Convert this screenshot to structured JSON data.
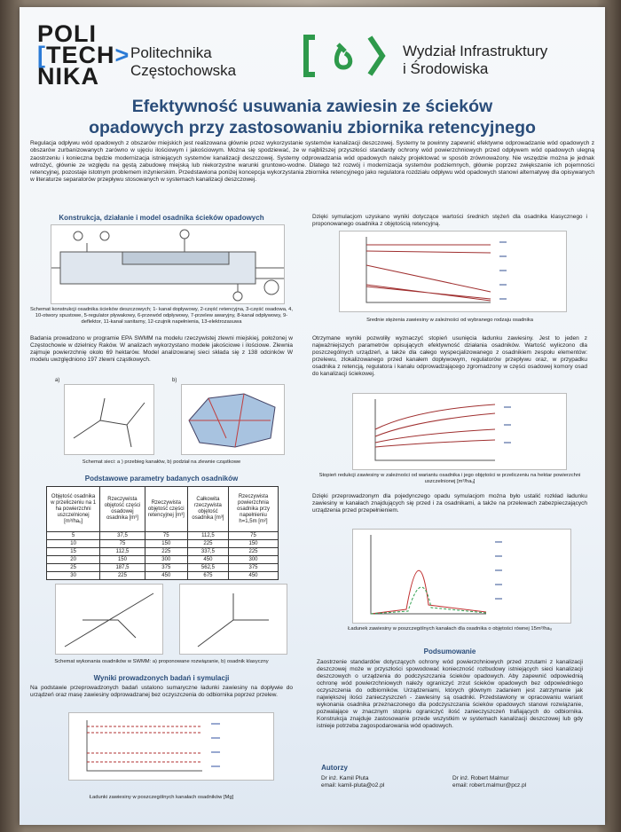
{
  "header": {
    "logo": [
      "POLI",
      "TECH",
      "NIKA"
    ],
    "university": [
      "Politechnika",
      "Częstochowska"
    ],
    "faculty": [
      "Wydział Infrastruktury",
      "i Środowiska"
    ]
  },
  "title": [
    "Efektywność usuwania zawiesin ze ścieków",
    "opadowych przy zastosowaniu zbiornika retencyjnego"
  ],
  "intro": "Regulacja odpływu wód opadowych z obszarów miejskich jest realizowana głównie przez wykorzystanie systemów kanalizacji deszczowej. Systemy te powinny zapewnić efektywne odprowadzanie wód opadowych z obszarów zurbanizowanych zarówno w ujęciu ilościowym i jakościowym. Można się spodziewać, że w najbliższej przyszłości standardy ochrony wód powierzchniowych przed odpływem wód opadowych ulegną zaostrzeniu i konieczna będzie modernizacja istniejących systemów kanalizacji deszczowej. Systemy odprowadzania wód opadowych należy projektować w sposób zrównoważony. Nie wszędzie można je jednak wdrożyć, głównie ze względu na gęstą zabudowę miejską lub niekorzystne warunki gruntowo-wodne. Dlatego też rozwój i modernizacja systemów podziemnych, głównie poprzez zwiększanie ich pojemności retencyjnej, pozostaje istotnym problemem inżynierskim. Przedstawiona poniżej koncepcja wykorzystania zbiornika retencyjnego jako regulatora rozdziału odpływu wód opadowych stanowi alternatywę dla opisywanych w literaturze separatorów przepływu stosowanych w systemach kanalizacji deszczowej.",
  "left": {
    "heading1": "Konstrukcja, działanie i model osadnika ścieków opadowych",
    "caption1": "Schemat konstrukcji osadnika ścieków deszczowych; 1- kanał dopływowy, 2-część retencyjna, 3-część osadowa, 4, 10-otwory spustowe, 5-regulator pływakowy, 6-przewód odpływowy, 7-przelew awaryjny, 8-kanał odpływowy, 9-deflektor, 11-kanał sanitarny, 12-czujnik napełnienia, 13-elektrozasuwa",
    "para1": "Badania prowadzono w programie EPA SWMM na modelu rzeczywistej zlewni miejskiej, położonej w Częstochowie w dzielnicy Raków. W analizach wykorzystano modele jakościowe i ilościowe. Zlewnia zajmuje powierzchnię około 69 hektarów. Model analizowanej sieci składa się z 138 odcinków W modelu uwzględniono 197 zlewni cząstkowych.",
    "panel_a": "a)",
    "panel_b": "b)",
    "caption2": "Schemat sieci: a ) przebieg kanałów, b) podział na zlewnie cząstkowe",
    "heading2": "Podstawowe parametry badanych osadników",
    "caption3": "Schemat wykonania osadników w SWMM: a) proponowane rozwiązanie, b) osadnik klasyczny",
    "heading3": "Wyniki prowadzonych badań i symulacji",
    "para2": "Na podstawie przeprowadzonych badań ustalono sumaryczne ładunki zawiesiny na dopływie do urządzeń oraz masę zawiesiny odprowadzanej bez oczyszczenia do odbiornika poprzez przelew.",
    "caption4": "Ładunki zawiesiny w poszczególnych kanałach osadników [Mg]"
  },
  "table": {
    "header": [
      "Objętość osadnika w przeliczeniu na 1 ha powierzchni uszczelnionej [m³/haᵤ]",
      "Rzeczywista objętość części osadowej osadnika [m³]",
      "Rzeczywista objętość części retencyjnej [m³]",
      "Całkowita rzeczywista objętość osadnika [m³]",
      "Rzeczywista powierzchnia osadnika przy napełnieniu h=1,5m [m²]"
    ],
    "rows": [
      [
        "5",
        "37,5",
        "75",
        "112,5",
        "75"
      ],
      [
        "10",
        "75",
        "150",
        "225",
        "150"
      ],
      [
        "15",
        "112,5",
        "225",
        "337,5",
        "225"
      ],
      [
        "20",
        "150",
        "300",
        "450",
        "300"
      ],
      [
        "25",
        "187,5",
        "375",
        "562,5",
        "375"
      ],
      [
        "30",
        "225",
        "450",
        "675",
        "450"
      ]
    ]
  },
  "right": {
    "para1": "Dzięki symulacjom uzyskano wyniki dotyczące wartości średnich stężeń dla osadnika klasycznego i proponowanego osadnika z objętością retencyjną.",
    "caption1": "Średnie stężenia zawiesiny w zależności od wybranego rodzaju osadnika",
    "para2": "Otrzymane wyniki pozwoliły wyznaczyć stopień usunięcia ładunku zawiesiny. Jest to jeden z najważniejszych parametrów opisujących efektywność działania osadników. Wartość wyliczono dla poszczególnych urządzeń, a także dla całego wyspecjalizowanego z osadnikiem zespołu elementów: przelewu, zlokalizowanego przed kanałem dopływowym, regulatorów przepływu oraz, w przypadku osadnika z retencją, regulatora i kanału odprowadzającego zgromadzony w części osadowej komory osad do kanalizacji ściekowej.",
    "caption2": "Stopień redukcji zawiesiny w zależności od wariantu osadnika i jego objętości w przeliczeniu na hektar powierzchni uszczelnionej [m³/haᵤ]",
    "para3": "Dzięki przeprowadzonym dla pojedynczego opadu symulacjom można było ustalić rozkład ładunku zawiesiny w kanałach znajdujących się przed i za osadnikami, a także na przelewach zabezpieczających urządzenia przed przepełnieniem.",
    "caption3": "Ładunek zawiesiny w poszczególnych kanałach dla osadnika o objętości równej 15m³/haᵤ",
    "heading": "Podsumowanie",
    "summary": "Zaostrzenie standardów dotyczących ochrony wód powierzchniowych przed zrzutami z kanalizacji deszczowej może w przyszłości spowodować konieczność rozbudowy istniejących sieci kanalizacji deszczowych o urządzenia do podczyszczania ścieków opadowych. Aby zapewnić odpowiednią ochronę wód powierzchniowych należy ograniczyć zrzut ścieków opadowych bez odpowiedniego oczyszczenia do odbiorników. Urządzeniami, których głównym zadaniem jest zatrzymanie jak największej ilości zanieczyszczeń - zawiesiny są osadniki. Przedstawiony w opracowaniu wariant wykonania osadnika przeznaczonego dla podczyszczania ścieków opadowych stanowi rozwiązanie, pozwalające w znacznym stopniu ograniczyć ilość zanieczyszczeń trafiających do odbiornika. Konstrukcja znajduje zastosowanie przede wszystkim w systemach kanalizacji deszczowej lub gdy istnieje potrzeba zagospodarowania wód opadowych.",
    "authors_heading": "Autorzy",
    "authors": [
      {
        "name": "Dr inż. Kamil Pluta",
        "email": "email: kamil-pluta@o2.pl"
      },
      {
        "name": "Dr inż. Robert Malmur",
        "email": "email: robert.malmur@pcz.pl"
      }
    ]
  }
}
